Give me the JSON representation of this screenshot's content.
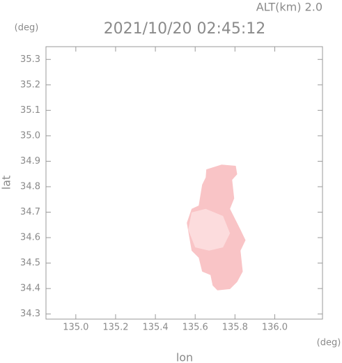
{
  "chart_data": {
    "type": "area-map",
    "title": "2021/10/20 02:45:12",
    "subtitle": "ALT(km) 2.0",
    "x_label": "lon",
    "y_label": "lat",
    "x_unit": "(deg)",
    "y_unit": "(deg)",
    "xlim": [
      134.85,
      136.24
    ],
    "ylim": [
      34.28,
      35.35
    ],
    "xticks": [
      {
        "value": 135,
        "label": "135.0"
      },
      135.2,
      135.4,
      135.6,
      135.8,
      {
        "value": 136,
        "label": "136.0"
      }
    ],
    "yticks": [
      34.3,
      34.4,
      34.5,
      34.6,
      34.7,
      34.8,
      34.9,
      {
        "value": 35,
        "label": "35.0"
      },
      35.1,
      35.2,
      35.3
    ],
    "series": [
      {
        "color": "#f9c4c6",
        "x": [
          135.656,
          135.733,
          135.804,
          135.811,
          135.786,
          135.796,
          135.775,
          135.828,
          135.853,
          135.828,
          135.839,
          135.811,
          135.775,
          135.712,
          135.688,
          135.677,
          135.635,
          135.618,
          135.582,
          135.558,
          135.582,
          135.618,
          135.635,
          135.653
        ],
        "y": [
          34.868,
          34.887,
          34.882,
          34.849,
          34.827,
          34.754,
          34.713,
          34.631,
          34.59,
          34.549,
          34.467,
          34.426,
          34.398,
          34.393,
          34.412,
          34.453,
          34.467,
          34.521,
          34.549,
          34.658,
          34.713,
          34.726,
          34.808,
          34.836
        ]
      },
      {
        "color": "#fcdcdd",
        "x": [
          135.582,
          135.653,
          135.74,
          135.775,
          135.74,
          135.67,
          135.6,
          135.565
        ],
        "y": [
          34.699,
          34.713,
          34.685,
          34.617,
          34.562,
          34.549,
          34.562,
          34.631
        ]
      }
    ]
  }
}
